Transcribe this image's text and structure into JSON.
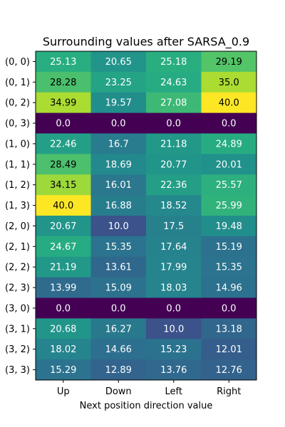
{
  "chart_data": {
    "type": "heatmap",
    "title": "Surrounding values after SARSA_0.9",
    "xlabel": "Next position direction value",
    "ylabel": "",
    "x_categories": [
      "Up",
      "Down",
      "Left",
      "Right"
    ],
    "y_categories": [
      "(0, 0)",
      "(0, 1)",
      "(0, 2)",
      "(0, 3)",
      "(1, 0)",
      "(1, 1)",
      "(1, 2)",
      "(1, 3)",
      "(2, 0)",
      "(2, 1)",
      "(2, 2)",
      "(2, 3)",
      "(3, 0)",
      "(3, 1)",
      "(3, 2)",
      "(3, 3)"
    ],
    "values": [
      [
        25.13,
        20.65,
        25.18,
        29.19
      ],
      [
        28.28,
        23.25,
        24.63,
        35.0
      ],
      [
        34.99,
        19.57,
        27.08,
        40.0
      ],
      [
        0.0,
        0.0,
        0.0,
        0.0
      ],
      [
        22.46,
        16.7,
        21.18,
        24.89
      ],
      [
        28.49,
        18.69,
        20.77,
        20.01
      ],
      [
        34.15,
        16.01,
        22.36,
        25.57
      ],
      [
        40.0,
        16.88,
        18.52,
        25.99
      ],
      [
        20.67,
        10.0,
        17.5,
        19.48
      ],
      [
        24.67,
        15.35,
        17.64,
        15.19
      ],
      [
        21.19,
        13.61,
        17.99,
        15.35
      ],
      [
        13.99,
        15.09,
        18.03,
        14.96
      ],
      [
        0.0,
        0.0,
        0.0,
        0.0
      ],
      [
        20.68,
        16.27,
        10.0,
        13.18
      ],
      [
        18.02,
        14.66,
        15.23,
        12.01
      ],
      [
        15.29,
        12.89,
        13.76,
        12.76
      ]
    ],
    "value_labels": [
      [
        "25.13",
        "20.65",
        "25.18",
        "29.19"
      ],
      [
        "28.28",
        "23.25",
        "24.63",
        "35.0"
      ],
      [
        "34.99",
        "19.57",
        "27.08",
        "40.0"
      ],
      [
        "0.0",
        "0.0",
        "0.0",
        "0.0"
      ],
      [
        "22.46",
        "16.7",
        "21.18",
        "24.89"
      ],
      [
        "28.49",
        "18.69",
        "20.77",
        "20.01"
      ],
      [
        "34.15",
        "16.01",
        "22.36",
        "25.57"
      ],
      [
        "40.0",
        "16.88",
        "18.52",
        "25.99"
      ],
      [
        "20.67",
        "10.0",
        "17.5",
        "19.48"
      ],
      [
        "24.67",
        "15.35",
        "17.64",
        "15.19"
      ],
      [
        "21.19",
        "13.61",
        "17.99",
        "15.35"
      ],
      [
        "13.99",
        "15.09",
        "18.03",
        "14.96"
      ],
      [
        "0.0",
        "0.0",
        "0.0",
        "0.0"
      ],
      [
        "20.68",
        "16.27",
        "10.0",
        "13.18"
      ],
      [
        "18.02",
        "14.66",
        "15.23",
        "12.01"
      ],
      [
        "15.29",
        "12.89",
        "13.76",
        "12.76"
      ]
    ],
    "value_range": [
      0,
      40
    ],
    "colormap": "viridis",
    "grid": false,
    "legend": "none"
  }
}
